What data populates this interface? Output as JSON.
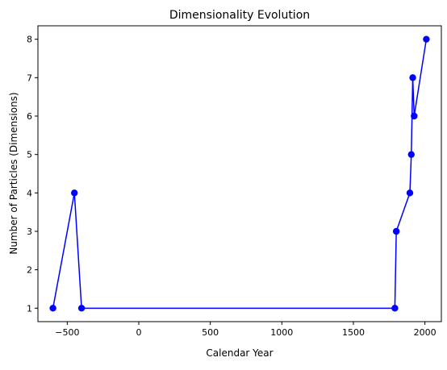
{
  "chart_data": {
    "type": "line",
    "title": "Dimensionality Evolution",
    "xlabel": "Calendar Year",
    "ylabel": "Number of Particles (Dimensions)",
    "x": [
      -600,
      -450,
      -400,
      1790,
      1800,
      1895,
      1905,
      1915,
      1925,
      2010
    ],
    "series": [
      {
        "values": [
          1,
          4,
          1,
          1,
          3,
          4,
          5,
          7,
          6,
          8
        ],
        "color": "#0000ff",
        "marker": "circle"
      }
    ],
    "xlim": [
      -705,
      2115
    ],
    "ylim": [
      0.65,
      8.35
    ],
    "xticks": [
      -500,
      0,
      500,
      1000,
      1500,
      2000
    ],
    "xtick_labels": [
      "−500",
      "0",
      "500",
      "1000",
      "1500",
      "2000"
    ],
    "yticks": [
      1,
      2,
      3,
      4,
      5,
      6,
      7,
      8
    ],
    "ytick_labels": [
      "1",
      "2",
      "3",
      "4",
      "5",
      "6",
      "7",
      "8"
    ],
    "grid": false,
    "legend": "none"
  }
}
